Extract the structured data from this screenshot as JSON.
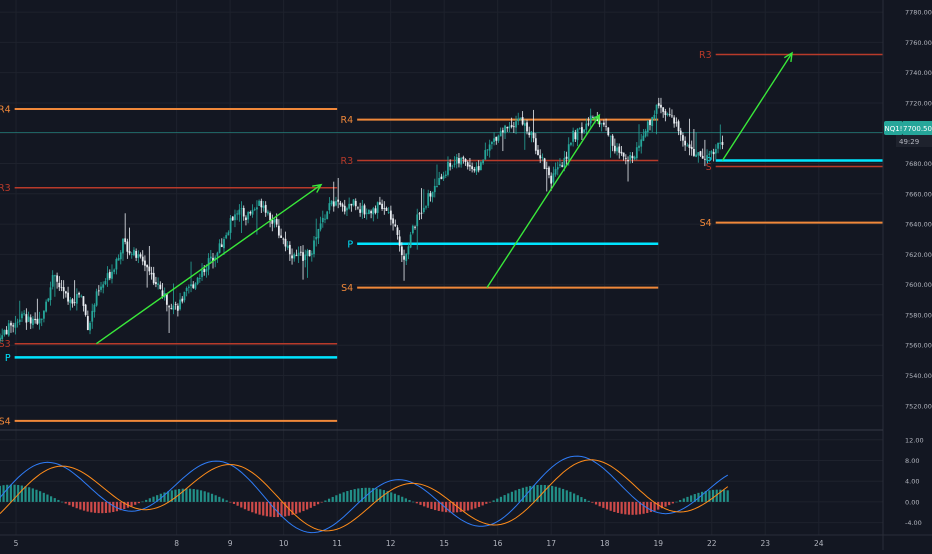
{
  "chart_data": {
    "type": "candlestick",
    "symbol_badge": "NQ1!",
    "last_price": "7700.50",
    "countdown": "49:29",
    "y_ticks": [
      "7780.00",
      "7760.00",
      "7740.00",
      "7720.00",
      "7700.00",
      "7680.00",
      "7660.00",
      "7640.00",
      "7620.00",
      "7600.00",
      "7580.00",
      "7560.00",
      "7540.00",
      "7520.00"
    ],
    "y_tick_values": [
      7780,
      7760,
      7740,
      7720,
      7700,
      7680,
      7660,
      7640,
      7620,
      7600,
      7580,
      7560,
      7540,
      7520
    ],
    "ylim": [
      7504,
      7788
    ],
    "x_ticks": [
      "5",
      "8",
      "9",
      "10",
      "11",
      "12",
      "15",
      "16",
      "17",
      "18",
      "19",
      "22",
      "23",
      "24"
    ],
    "x_tick_index": [
      0,
      3,
      4,
      5,
      6,
      7,
      8,
      9,
      10,
      11,
      12,
      13,
      14,
      15
    ],
    "x_range_index": [
      -0.3,
      16.2
    ],
    "last_price_value": 7700.5,
    "pivot_levels": [
      {
        "label": "R4",
        "value": 7716,
        "start": -0.4,
        "end": 6.0,
        "color": "#f0883a",
        "lw": 2
      },
      {
        "label": "R3",
        "value": 7664,
        "start": -0.4,
        "end": 6.0,
        "color": "#b83a2a",
        "lw": 1.5
      },
      {
        "label": "S3",
        "value": 7561,
        "start": -0.4,
        "end": 6.0,
        "color": "#b83a2a",
        "lw": 1.5
      },
      {
        "label": "P",
        "value": 7552,
        "start": -0.4,
        "end": 6.0,
        "color": "#00e5ff",
        "lw": 2.5
      },
      {
        "label": "S4",
        "value": 7510,
        "start": -0.4,
        "end": 6.0,
        "color": "#f0883a",
        "lw": 2
      },
      {
        "label": "R4",
        "value": 7709,
        "start": 6.0,
        "end": 12.0,
        "color": "#f0883a",
        "lw": 2
      },
      {
        "label": "R3",
        "value": 7682,
        "start": 6.0,
        "end": 12.0,
        "color": "#b83a2a",
        "lw": 1.5
      },
      {
        "label": "P",
        "value": 7627,
        "start": 6.0,
        "end": 12.0,
        "color": "#00e5ff",
        "lw": 2.5
      },
      {
        "label": "S4",
        "value": 7598,
        "start": 6.0,
        "end": 12.0,
        "color": "#f0883a",
        "lw": 2
      },
      {
        "label": "R3",
        "value": 7752,
        "start": 12.7,
        "end": 16.2,
        "color": "#b83a2a",
        "lw": 1.5
      },
      {
        "label": "P",
        "value": 7682,
        "start": 12.7,
        "end": 16.2,
        "color": "#00e5ff",
        "lw": 2.5
      },
      {
        "label": "S",
        "value": 7678,
        "start": 12.7,
        "end": 16.2,
        "color": "#b83a2a",
        "lw": 1.5
      },
      {
        "label": "S4",
        "value": 7641,
        "start": 12.7,
        "end": 16.2,
        "color": "#f0883a",
        "lw": 2
      }
    ],
    "arrows": [
      {
        "from": [
          1.5,
          7561
        ],
        "to": [
          5.7,
          7666
        ]
      },
      {
        "from": [
          8.8,
          7598
        ],
        "to": [
          10.9,
          7712
        ]
      },
      {
        "from": [
          13.2,
          7682
        ],
        "to": [
          14.5,
          7753
        ]
      }
    ],
    "price_path": [
      [
        -0.3,
        7565
      ],
      [
        0.1,
        7580
      ],
      [
        0.4,
        7572
      ],
      [
        0.7,
        7605
      ],
      [
        1.0,
        7588
      ],
      [
        1.2,
        7595
      ],
      [
        1.35,
        7572
      ],
      [
        1.5,
        7592
      ],
      [
        1.8,
        7610
      ],
      [
        2.0,
        7628
      ],
      [
        2.2,
        7620
      ],
      [
        2.4,
        7615
      ],
      [
        2.6,
        7602
      ],
      [
        2.8,
        7590
      ],
      [
        3.0,
        7585
      ],
      [
        3.3,
        7600
      ],
      [
        3.6,
        7615
      ],
      [
        3.9,
        7630
      ],
      [
        4.1,
        7650
      ],
      [
        4.3,
        7645
      ],
      [
        4.6,
        7655
      ],
      [
        4.9,
        7635
      ],
      [
        5.2,
        7618
      ],
      [
        5.5,
        7620
      ],
      [
        5.7,
        7640
      ],
      [
        5.9,
        7655
      ],
      [
        6.1,
        7650
      ],
      [
        6.3,
        7655
      ],
      [
        6.5,
        7648
      ],
      [
        6.8,
        7652
      ],
      [
        7.0,
        7645
      ],
      [
        7.15,
        7628
      ],
      [
        7.25,
        7618
      ],
      [
        7.4,
        7635
      ],
      [
        7.6,
        7652
      ],
      [
        7.9,
        7668
      ],
      [
        8.1,
        7680
      ],
      [
        8.4,
        7682
      ],
      [
        8.6,
        7675
      ],
      [
        8.8,
        7688
      ],
      [
        9.0,
        7700
      ],
      [
        9.2,
        7705
      ],
      [
        9.4,
        7710
      ],
      [
        9.6,
        7700
      ],
      [
        9.8,
        7685
      ],
      [
        10.0,
        7670
      ],
      [
        10.2,
        7678
      ],
      [
        10.4,
        7698
      ],
      [
        10.6,
        7702
      ],
      [
        10.8,
        7712
      ],
      [
        11.0,
        7705
      ],
      [
        11.2,
        7690
      ],
      [
        11.4,
        7680
      ],
      [
        11.6,
        7690
      ],
      [
        11.8,
        7705
      ],
      [
        12.0,
        7720
      ],
      [
        12.2,
        7712
      ],
      [
        12.4,
        7700
      ],
      [
        12.6,
        7690
      ],
      [
        12.8,
        7682
      ],
      [
        13.0,
        7688
      ],
      [
        13.2,
        7695
      ]
    ],
    "bull_color": "#26a69a",
    "bear_color": "#e8ecf1",
    "macd_ticks": [
      "12.00",
      "8.00",
      "4.00",
      "0.00",
      "-4.00"
    ],
    "macd_tick_values": [
      12,
      8,
      4,
      0,
      -4
    ],
    "macd_ylim": [
      -6.2,
      13.5
    ],
    "macd_line_color": "#2f7cf6",
    "signal_line_color": "#ff8c1a",
    "hist_pos_color": "#26a69a",
    "hist_neg_color": "#ef5350"
  }
}
